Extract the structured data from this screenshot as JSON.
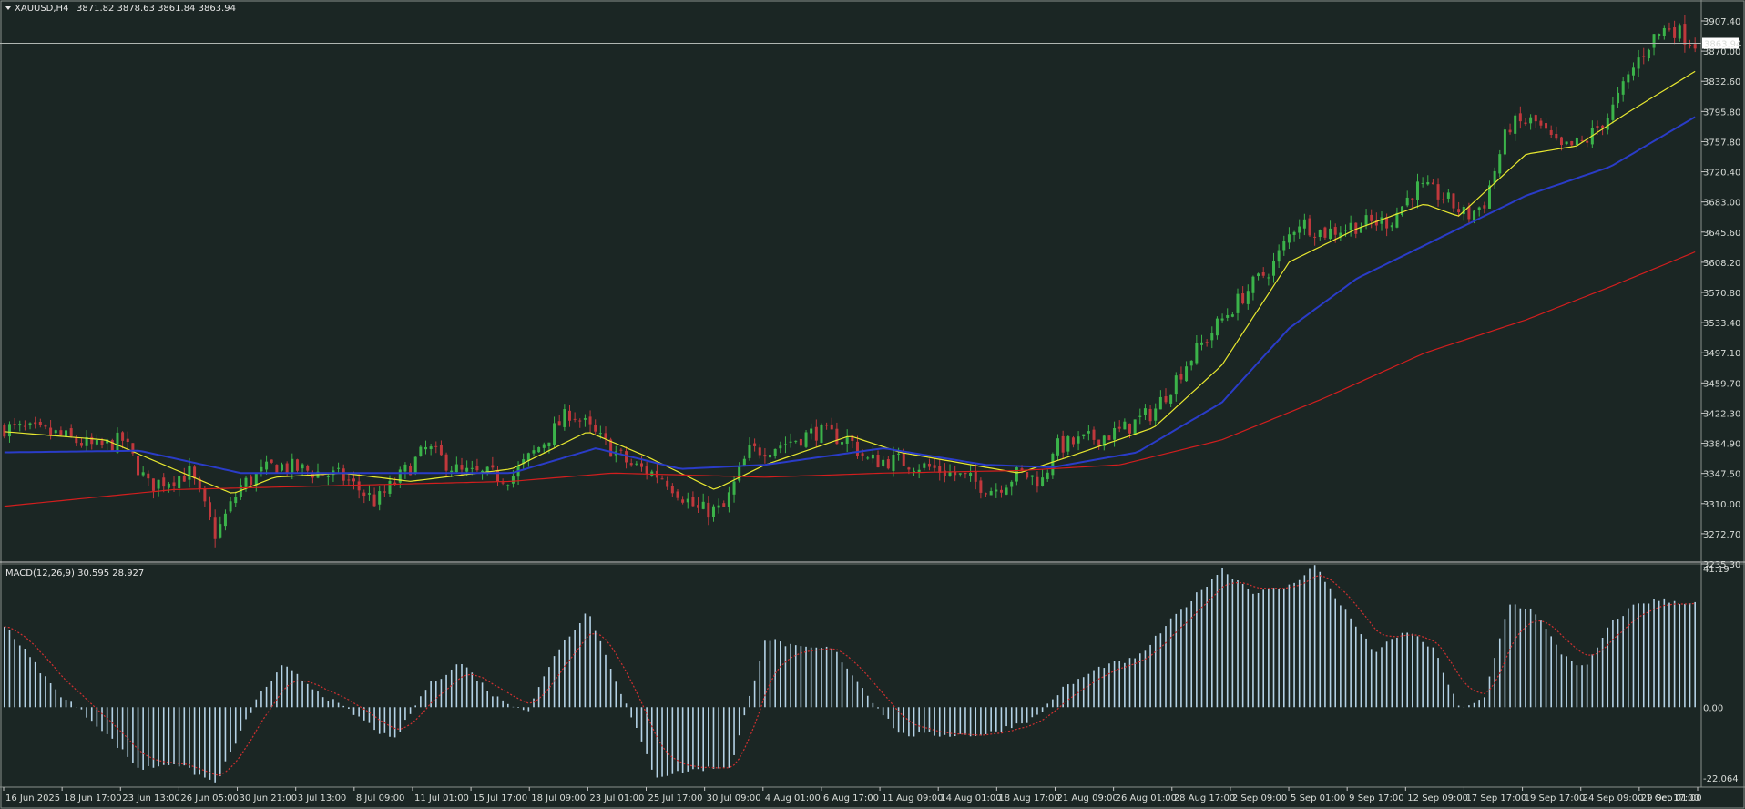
{
  "header": {
    "symbol": "XAUUSD,H4",
    "ohlc": "3871.82 3878.63 3861.84 3863.94"
  },
  "price_marker": "3863.94",
  "price_axis_labels": [
    "3907.40",
    "3870.00",
    "3832.60",
    "3795.80",
    "3757.80",
    "3720.40",
    "3683.00",
    "3645.60",
    "3608.20",
    "3570.80",
    "3533.40",
    "3497.10",
    "3459.70",
    "3422.30",
    "3384.90",
    "3347.50",
    "3310.00",
    "3272.70",
    "3235.30"
  ],
  "macd_header": "MACD(12,26,9) 30.595 28.927",
  "macd_axis_labels": [
    "41.19",
    "0.00",
    "-22.064"
  ],
  "time_labels": [
    "16 Jun 2025",
    "18 Jun 17:00",
    "23 Jun 13:00",
    "26 Jun 05:00",
    "30 Jun 21:00",
    "3 Jul 13:00",
    "8 Jul 09:00",
    "11 Jul 01:00",
    "15 Jul 17:00",
    "18 Jul 09:00",
    "23 Jul 01:00",
    "25 Jul 17:00",
    "30 Jul 09:00",
    "4 Aug 01:00",
    "6 Aug 17:00",
    "11 Aug 09:00",
    "14 Aug 01:00",
    "18 Aug 17:00",
    "21 Aug 09:00",
    "26 Aug 01:00",
    "28 Aug 17:00",
    "2 Sep 09:00",
    "5 Sep 01:00",
    "9 Sep 17:00",
    "12 Sep 09:00",
    "17 Sep 17:00",
    "19 Sep 17:00",
    "24 Sep 09:00",
    "29 Sep 01:00",
    "1 Oct 17:00"
  ],
  "colors": {
    "background": "#1b2624",
    "bull": "#3bb34a",
    "bear": "#c0383c",
    "ma_fast": "#e8e830",
    "ma_mid": "#2a3cc8",
    "ma_slow": "#d21e1e",
    "macd_hist": "#b4d2e6",
    "macd_signal": "#d03030",
    "axis": "#c8c8c8"
  },
  "chart_data": [
    {
      "type": "candlestick",
      "title": "XAUUSD,H4",
      "ylim": [
        3235.3,
        3907.4
      ],
      "anchors": [
        {
          "t": 0,
          "p": 3400
        },
        {
          "t": 0.03,
          "p": 3392
        },
        {
          "t": 0.055,
          "p": 3375
        },
        {
          "t": 0.07,
          "p": 3385
        },
        {
          "t": 0.085,
          "p": 3330
        },
        {
          "t": 0.11,
          "p": 3345
        },
        {
          "t": 0.125,
          "p": 3270
        },
        {
          "t": 0.14,
          "p": 3330
        },
        {
          "t": 0.16,
          "p": 3355
        },
        {
          "t": 0.2,
          "p": 3340
        },
        {
          "t": 0.22,
          "p": 3310
        },
        {
          "t": 0.25,
          "p": 3375
        },
        {
          "t": 0.27,
          "p": 3345
        },
        {
          "t": 0.3,
          "p": 3340
        },
        {
          "t": 0.32,
          "p": 3385
        },
        {
          "t": 0.335,
          "p": 3420
        },
        {
          "t": 0.35,
          "p": 3390
        },
        {
          "t": 0.37,
          "p": 3355
        },
        {
          "t": 0.39,
          "p": 3340
        },
        {
          "t": 0.41,
          "p": 3300
        },
        {
          "t": 0.425,
          "p": 3300
        },
        {
          "t": 0.44,
          "p": 3370
        },
        {
          "t": 0.46,
          "p": 3380
        },
        {
          "t": 0.48,
          "p": 3395
        },
        {
          "t": 0.5,
          "p": 3385
        },
        {
          "t": 0.51,
          "p": 3360
        },
        {
          "t": 0.53,
          "p": 3360
        },
        {
          "t": 0.56,
          "p": 3345
        },
        {
          "t": 0.585,
          "p": 3325
        },
        {
          "t": 0.6,
          "p": 3345
        },
        {
          "t": 0.615,
          "p": 3335
        },
        {
          "t": 0.62,
          "p": 3375
        },
        {
          "t": 0.66,
          "p": 3395
        },
        {
          "t": 0.68,
          "p": 3420
        },
        {
          "t": 0.7,
          "p": 3480
        },
        {
          "t": 0.72,
          "p": 3530
        },
        {
          "t": 0.735,
          "p": 3565
        },
        {
          "t": 0.75,
          "p": 3595
        },
        {
          "t": 0.765,
          "p": 3650
        },
        {
          "t": 0.78,
          "p": 3635
        },
        {
          "t": 0.8,
          "p": 3645
        },
        {
          "t": 0.82,
          "p": 3650
        },
        {
          "t": 0.835,
          "p": 3690
        },
        {
          "t": 0.85,
          "p": 3680
        },
        {
          "t": 0.865,
          "p": 3655
        },
        {
          "t": 0.875,
          "p": 3670
        },
        {
          "t": 0.89,
          "p": 3765
        },
        {
          "t": 0.905,
          "p": 3770
        },
        {
          "t": 0.92,
          "p": 3735
        },
        {
          "t": 0.935,
          "p": 3745
        },
        {
          "t": 0.95,
          "p": 3780
        },
        {
          "t": 0.965,
          "p": 3840
        },
        {
          "t": 0.975,
          "p": 3870
        },
        {
          "t": 0.985,
          "p": 3885
        },
        {
          "t": 1,
          "p": 3864
        }
      ],
      "series": [
        {
          "name": "",
          "anchors": [
            {
              "t": 0,
              "p": 3395
            },
            {
              "t": 0.06,
              "p": 3385
            },
            {
              "t": 0.1,
              "p": 3350
            },
            {
              "t": 0.135,
              "p": 3320
            },
            {
              "t": 0.16,
              "p": 3340
            },
            {
              "t": 0.2,
              "p": 3345
            },
            {
              "t": 0.24,
              "p": 3335
            },
            {
              "t": 0.3,
              "p": 3350
            },
            {
              "t": 0.345,
              "p": 3395
            },
            {
              "t": 0.38,
              "p": 3365
            },
            {
              "t": 0.42,
              "p": 3325
            },
            {
              "t": 0.45,
              "p": 3355
            },
            {
              "t": 0.5,
              "p": 3390
            },
            {
              "t": 0.53,
              "p": 3370
            },
            {
              "t": 0.6,
              "p": 3345
            },
            {
              "t": 0.63,
              "p": 3365
            },
            {
              "t": 0.68,
              "p": 3400
            },
            {
              "t": 0.72,
              "p": 3475
            },
            {
              "t": 0.76,
              "p": 3600
            },
            {
              "t": 0.8,
              "p": 3640
            },
            {
              "t": 0.84,
              "p": 3670
            },
            {
              "t": 0.86,
              "p": 3655
            },
            {
              "t": 0.9,
              "p": 3730
            },
            {
              "t": 0.93,
              "p": 3740
            },
            {
              "t": 0.96,
              "p": 3780
            },
            {
              "t": 1,
              "p": 3830
            }
          ]
        },
        {
          "name": "",
          "anchors": [
            {
              "t": 0,
              "p": 3370
            },
            {
              "t": 0.08,
              "p": 3372
            },
            {
              "t": 0.14,
              "p": 3345
            },
            {
              "t": 0.2,
              "p": 3345
            },
            {
              "t": 0.3,
              "p": 3345
            },
            {
              "t": 0.35,
              "p": 3375
            },
            {
              "t": 0.4,
              "p": 3350
            },
            {
              "t": 0.45,
              "p": 3355
            },
            {
              "t": 0.52,
              "p": 3375
            },
            {
              "t": 0.58,
              "p": 3355
            },
            {
              "t": 0.62,
              "p": 3352
            },
            {
              "t": 0.67,
              "p": 3370
            },
            {
              "t": 0.72,
              "p": 3430
            },
            {
              "t": 0.76,
              "p": 3520
            },
            {
              "t": 0.8,
              "p": 3580
            },
            {
              "t": 0.85,
              "p": 3630
            },
            {
              "t": 0.9,
              "p": 3680
            },
            {
              "t": 0.95,
              "p": 3715
            },
            {
              "t": 1,
              "p": 3775
            }
          ]
        },
        {
          "name": "",
          "anchors": [
            {
              "t": 0,
              "p": 3305
            },
            {
              "t": 0.1,
              "p": 3325
            },
            {
              "t": 0.2,
              "p": 3330
            },
            {
              "t": 0.3,
              "p": 3335
            },
            {
              "t": 0.36,
              "p": 3345
            },
            {
              "t": 0.45,
              "p": 3340
            },
            {
              "t": 0.52,
              "p": 3345
            },
            {
              "t": 0.6,
              "p": 3348
            },
            {
              "t": 0.66,
              "p": 3355
            },
            {
              "t": 0.72,
              "p": 3385
            },
            {
              "t": 0.78,
              "p": 3435
            },
            {
              "t": 0.84,
              "p": 3490
            },
            {
              "t": 0.9,
              "p": 3530
            },
            {
              "t": 0.95,
              "p": 3570
            },
            {
              "t": 1,
              "p": 3612
            }
          ]
        }
      ]
    },
    {
      "type": "bar",
      "title": "MACD(12,26,9) 30.595 28.927",
      "ylim": [
        -22.064,
        41.19
      ],
      "anchors": [
        {
          "t": 0,
          "v": 24
        },
        {
          "t": 0.03,
          "v": 5
        },
        {
          "t": 0.055,
          "v": -5
        },
        {
          "t": 0.08,
          "v": -18
        },
        {
          "t": 0.1,
          "v": -16
        },
        {
          "t": 0.125,
          "v": -22
        },
        {
          "t": 0.15,
          "v": 3
        },
        {
          "t": 0.165,
          "v": 12
        },
        {
          "t": 0.19,
          "v": 3
        },
        {
          "t": 0.21,
          "v": -3
        },
        {
          "t": 0.23,
          "v": -10
        },
        {
          "t": 0.25,
          "v": 6
        },
        {
          "t": 0.27,
          "v": 13
        },
        {
          "t": 0.29,
          "v": 3
        },
        {
          "t": 0.31,
          "v": -1
        },
        {
          "t": 0.325,
          "v": 15
        },
        {
          "t": 0.345,
          "v": 28
        },
        {
          "t": 0.36,
          "v": 10
        },
        {
          "t": 0.385,
          "v": -20
        },
        {
          "t": 0.41,
          "v": -18
        },
        {
          "t": 0.43,
          "v": -17
        },
        {
          "t": 0.45,
          "v": 20
        },
        {
          "t": 0.47,
          "v": 17
        },
        {
          "t": 0.49,
          "v": 17
        },
        {
          "t": 0.51,
          "v": 4
        },
        {
          "t": 0.53,
          "v": -8
        },
        {
          "t": 0.58,
          "v": -8
        },
        {
          "t": 0.61,
          "v": -3
        },
        {
          "t": 0.625,
          "v": 5
        },
        {
          "t": 0.65,
          "v": 12
        },
        {
          "t": 0.67,
          "v": 14
        },
        {
          "t": 0.69,
          "v": 25
        },
        {
          "t": 0.72,
          "v": 40
        },
        {
          "t": 0.74,
          "v": 33
        },
        {
          "t": 0.76,
          "v": 35
        },
        {
          "t": 0.775,
          "v": 41
        },
        {
          "t": 0.79,
          "v": 30
        },
        {
          "t": 0.81,
          "v": 16
        },
        {
          "t": 0.83,
          "v": 22
        },
        {
          "t": 0.845,
          "v": 17
        },
        {
          "t": 0.86,
          "v": 0
        },
        {
          "t": 0.875,
          "v": 2
        },
        {
          "t": 0.89,
          "v": 30
        },
        {
          "t": 0.905,
          "v": 28
        },
        {
          "t": 0.92,
          "v": 16
        },
        {
          "t": 0.935,
          "v": 11
        },
        {
          "t": 0.95,
          "v": 24
        },
        {
          "t": 0.965,
          "v": 30
        },
        {
          "t": 0.98,
          "v": 31
        },
        {
          "t": 1,
          "v": 30
        }
      ]
    }
  ]
}
